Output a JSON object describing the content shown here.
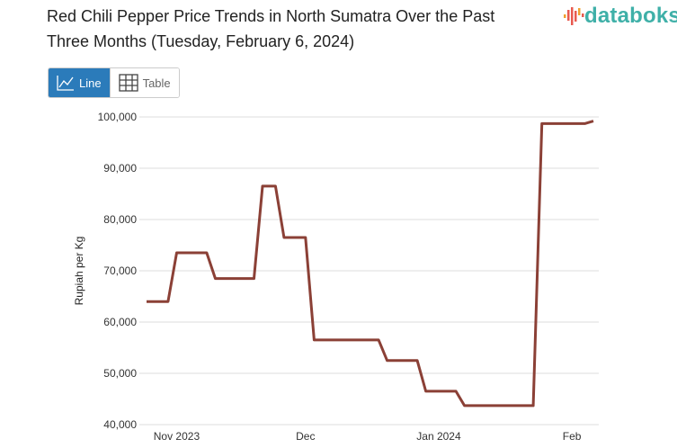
{
  "title": "Red Chili Pepper Price Trends in North Sumatra Over the Past Three Months (Tuesday, February 6, 2024)",
  "logo": {
    "text": "databoks"
  },
  "view_toggle": {
    "line_label": "Line",
    "table_label": "Table",
    "active": "Line"
  },
  "colors": {
    "line": "#8b4036",
    "accent": "#2b7bba",
    "logo": "#3fb0a8"
  },
  "chart_data": {
    "type": "line",
    "title": "Red Chili Pepper Price Trends in North Sumatra Over the Past Three Months (Tuesday, February 6, 2024)",
    "xlabel": "",
    "ylabel": "Rupiah per Kg",
    "ylim": [
      40000,
      100000
    ],
    "yticks": [
      "40,000",
      "50,000",
      "60,000",
      "70,000",
      "80,000",
      "90,000",
      "100,000"
    ],
    "ytick_values": [
      40000,
      50000,
      60000,
      70000,
      80000,
      90000,
      100000
    ],
    "xlim": [
      "2023-10-25",
      "2024-02-06"
    ],
    "xticks": [
      {
        "date": "2023-11-01",
        "label": "Nov 2023"
      },
      {
        "date": "2023-12-01",
        "label": "Dec"
      },
      {
        "date": "2024-01-01",
        "label": "Jan 2024"
      },
      {
        "date": "2024-02-01",
        "label": "Feb"
      }
    ],
    "grid": true,
    "series": [
      {
        "name": "Rupiah per Kg",
        "points": [
          {
            "date": "2023-10-25",
            "value": 64000
          },
          {
            "date": "2023-10-30",
            "value": 64000
          },
          {
            "date": "2023-11-01",
            "value": 73500
          },
          {
            "date": "2023-11-08",
            "value": 73500
          },
          {
            "date": "2023-11-10",
            "value": 68500
          },
          {
            "date": "2023-11-19",
            "value": 68500
          },
          {
            "date": "2023-11-21",
            "value": 86500
          },
          {
            "date": "2023-11-24",
            "value": 86500
          },
          {
            "date": "2023-11-26",
            "value": 76500
          },
          {
            "date": "2023-12-01",
            "value": 76500
          },
          {
            "date": "2023-12-03",
            "value": 56500
          },
          {
            "date": "2023-12-18",
            "value": 56500
          },
          {
            "date": "2023-12-20",
            "value": 52500
          },
          {
            "date": "2023-12-27",
            "value": 52500
          },
          {
            "date": "2023-12-29",
            "value": 46500
          },
          {
            "date": "2024-01-05",
            "value": 46500
          },
          {
            "date": "2024-01-07",
            "value": 43700
          },
          {
            "date": "2024-01-23",
            "value": 43700
          },
          {
            "date": "2024-01-25",
            "value": 98700
          },
          {
            "date": "2024-02-04",
            "value": 98700
          },
          {
            "date": "2024-02-06",
            "value": 99200
          }
        ]
      }
    ]
  }
}
